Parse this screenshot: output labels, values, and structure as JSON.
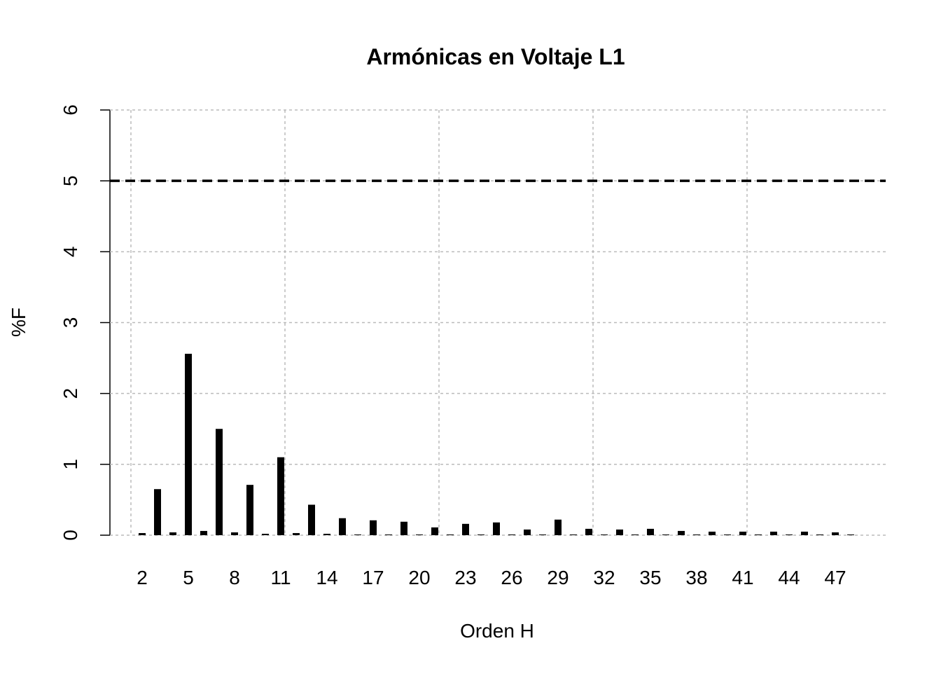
{
  "chart_data": {
    "type": "bar",
    "title": "Armónicas en Voltaje L1",
    "x_label": "Orden H",
    "y_label": "%F",
    "categories": [
      2,
      null,
      null,
      5,
      null,
      null,
      8,
      null,
      null,
      11,
      null,
      null,
      14,
      null,
      null,
      17,
      null,
      null,
      20,
      null,
      null,
      23,
      null,
      null,
      26,
      null,
      null,
      29,
      null,
      null,
      32,
      null,
      null,
      35,
      null,
      null,
      38,
      null,
      null,
      41,
      null,
      null,
      44,
      null,
      null,
      47,
      null
    ],
    "values": [
      0.03,
      0.65,
      0.04,
      2.56,
      0.06,
      1.5,
      0.04,
      0.71,
      0.02,
      1.1,
      0.03,
      0.43,
      0.02,
      0.24,
      0.01,
      0.21,
      0.01,
      0.19,
      0.01,
      0.11,
      0.01,
      0.16,
      0.01,
      0.18,
      0.01,
      0.08,
      0.01,
      0.22,
      0.01,
      0.09,
      0.01,
      0.08,
      0.01,
      0.09,
      0.01,
      0.06,
      0.01,
      0.05,
      0.01,
      0.05,
      0.01,
      0.05,
      0.01,
      0.05,
      0.01,
      0.04,
      0.01
    ],
    "color": "#000000",
    "ylim": [
      0,
      6
    ],
    "yticks": [
      0,
      1,
      2,
      3,
      4,
      5,
      6
    ],
    "grid": true,
    "hline": 5
  }
}
